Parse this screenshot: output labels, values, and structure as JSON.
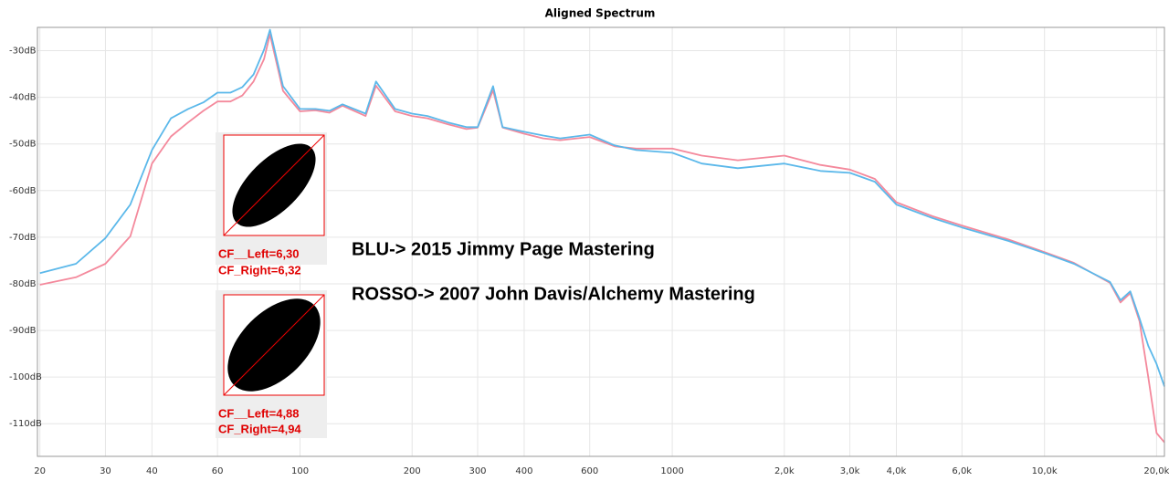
{
  "chart_data": {
    "type": "line",
    "title": "Aligned Spectrum",
    "log_x": true,
    "grid": true,
    "xlim": [
      19.7,
      21000
    ],
    "ylim": [
      -117,
      -25
    ],
    "xticks": [
      20,
      30,
      40,
      60,
      100,
      200,
      300,
      400,
      600,
      1000,
      {
        "value": 2000,
        "label": "2,0k"
      },
      {
        "value": 3000,
        "label": "3,0k"
      },
      {
        "value": 4000,
        "label": "4,0k"
      },
      {
        "value": 6000,
        "label": "6,0k"
      },
      {
        "value": 10000,
        "label": "10,0k"
      },
      {
        "value": 20000,
        "label": "20,0k"
      }
    ],
    "yticks": [
      {
        "value": -30,
        "label": "-30dB"
      },
      {
        "value": -40,
        "label": "-40dB"
      },
      {
        "value": -50,
        "label": "-50dB"
      },
      {
        "value": -60,
        "label": "-60dB"
      },
      {
        "value": -70,
        "label": "-70dB"
      },
      {
        "value": -80,
        "label": "-80dB"
      },
      {
        "value": -90,
        "label": "-90dB"
      },
      {
        "value": -100,
        "label": "-100dB"
      },
      {
        "value": -110,
        "label": "-110dB"
      }
    ],
    "x": [
      20,
      25,
      30,
      35,
      40,
      45,
      50,
      55,
      60,
      65,
      70,
      75,
      80,
      83,
      90,
      100,
      110,
      120,
      130,
      150,
      160,
      180,
      200,
      220,
      250,
      280,
      300,
      330,
      350,
      400,
      450,
      500,
      600,
      700,
      800,
      1000,
      1200,
      1500,
      2000,
      2500,
      3000,
      3500,
      4000,
      5000,
      6000,
      8000,
      10000,
      12000,
      15000,
      16000,
      17000,
      18000,
      19000,
      20000,
      21000
    ],
    "series": [
      {
        "color": "#f4899c",
        "values": [
          -80.2,
          -78.6,
          -75.7,
          -69.8,
          -54.2,
          -48.4,
          -45.4,
          -42.9,
          -40.9,
          -40.9,
          -39.6,
          -36.6,
          -31.8,
          -26.5,
          -38.6,
          -43,
          -42.8,
          -43.3,
          -41.8,
          -44,
          -37.5,
          -43,
          -44,
          -44.5,
          -45.8,
          -46.8,
          -46.5,
          -38.5,
          -46.5,
          -47.8,
          -48.8,
          -49.2,
          -48.5,
          -50.5,
          -51,
          -51,
          -52.5,
          -53.5,
          -52.5,
          -54.5,
          -55.5,
          -57.5,
          -62.5,
          -65.5,
          -67.5,
          -70.5,
          -73.2,
          -75.5,
          -79.8,
          -84,
          -82,
          -88,
          -100,
          -112,
          -114
        ]
      },
      {
        "color": "#5bb8ea",
        "values": [
          -77.7,
          -75.7,
          -70.2,
          -63,
          -51.3,
          -44.5,
          -42.5,
          -41.1,
          -39,
          -39,
          -37.8,
          -35.1,
          -29.8,
          -25.5,
          -37.6,
          -42.5,
          -42.5,
          -42.9,
          -41.5,
          -43.5,
          -36.6,
          -42.5,
          -43.5,
          -44,
          -45.4,
          -46.4,
          -46.4,
          -37.6,
          -46.4,
          -47.4,
          -48.2,
          -48.8,
          -48,
          -50.3,
          -51.3,
          -51.9,
          -54.2,
          -55.2,
          -54.2,
          -55.8,
          -56.2,
          -58.1,
          -63,
          -65.9,
          -67.9,
          -70.8,
          -73.4,
          -75.7,
          -79.6,
          -83.5,
          -81.6,
          -87.4,
          -93.3,
          -97.2,
          -102
        ]
      }
    ],
    "annotations": [
      "BLU-> 2015 Jimmy Page Mastering",
      "ROSSO-> 2007 John Davis/Alchemy Mastering"
    ],
    "insets": [
      [
        "CF__Left=6,30",
        "CF_Right=6,32"
      ],
      [
        "CF__Left=4,88",
        "CF_Right=4,94"
      ]
    ]
  }
}
